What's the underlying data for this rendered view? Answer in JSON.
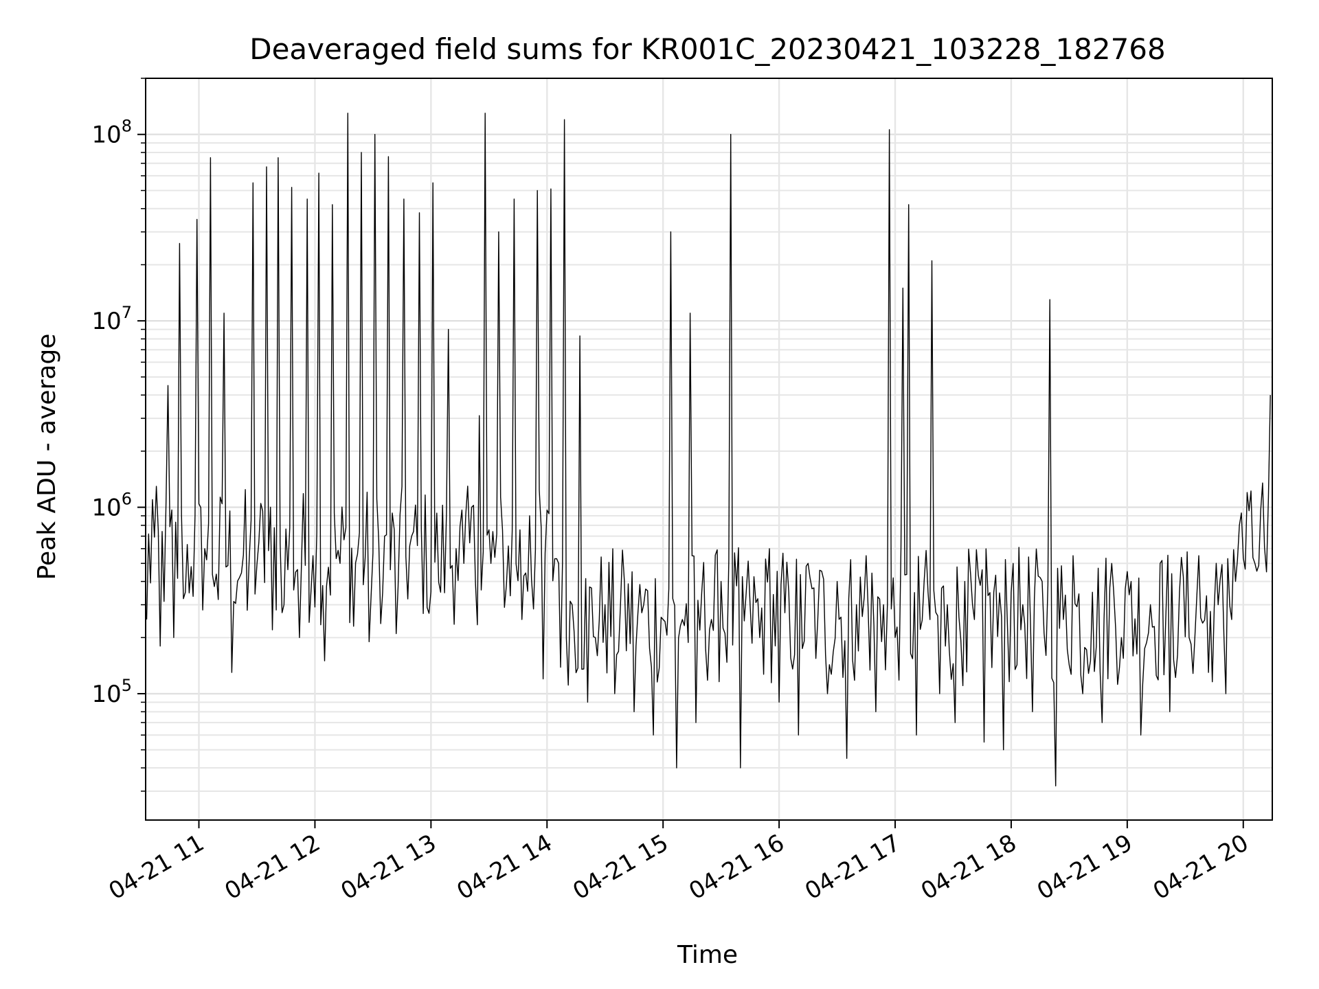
{
  "chart_data": {
    "type": "line",
    "title": "Deaveraged field sums for KR001C_20230421_103228_182768",
    "xlabel": "Time",
    "ylabel": "Peak ADU - average",
    "yscale": "log",
    "ylim": [
      21000,
      200000000
    ],
    "xlim": [
      "2023-04-21 10:32:28",
      "2023-04-21 20:15:00"
    ],
    "grid": true,
    "line_color": "#000000",
    "x_tick_labels": [
      "04-21 11",
      "04-21 12",
      "04-21 13",
      "04-21 14",
      "04-21 15",
      "04-21 16",
      "04-21 17",
      "04-21 18",
      "04-21 19",
      "04-21 20"
    ],
    "y_tick_labels": [
      {
        "base": "10",
        "exp": "5",
        "value": 100000
      },
      {
        "base": "10",
        "exp": "6",
        "value": 1000000
      },
      {
        "base": "10",
        "exp": "7",
        "value": 10000000
      },
      {
        "base": "10",
        "exp": "8",
        "value": 100000000
      }
    ],
    "series": [
      {
        "x": [
          "2023-04-21 10:33",
          "2023-04-21 10:36",
          "2023-04-21 10:40",
          "2023-04-21 10:44",
          "2023-04-21 10:47",
          "2023-04-21 10:50",
          "2023-04-21 10:53",
          "2023-04-21 10:56",
          "2023-04-21 10:59",
          "2023-04-21 11:03",
          "2023-04-21 11:06",
          "2023-04-21 11:10",
          "2023-04-21 11:13",
          "2023-04-21 11:17",
          "2023-04-21 11:21",
          "2023-04-21 11:25",
          "2023-04-21 11:28",
          "2023-04-21 11:31",
          "2023-04-21 11:35",
          "2023-04-21 11:38",
          "2023-04-21 11:41",
          "2023-04-21 11:44",
          "2023-04-21 11:48",
          "2023-04-21 11:52",
          "2023-04-21 11:56",
          "2023-04-21 11:59",
          "2023-04-21 12:02",
          "2023-04-21 12:05",
          "2023-04-21 12:09",
          "2023-04-21 12:13",
          "2023-04-21 12:17",
          "2023-04-21 12:20",
          "2023-04-21 12:24",
          "2023-04-21 12:28",
          "2023-04-21 12:31",
          "2023-04-21 12:35",
          "2023-04-21 12:38",
          "2023-04-21 12:42",
          "2023-04-21 12:46",
          "2023-04-21 12:50",
          "2023-04-21 12:54",
          "2023-04-21 12:58",
          "2023-04-21 13:01",
          "2023-04-21 13:05",
          "2023-04-21 13:09",
          "2023-04-21 13:13",
          "2023-04-21 13:17",
          "2023-04-21 13:21",
          "2023-04-21 13:25",
          "2023-04-21 13:28",
          "2023-04-21 13:31",
          "2023-04-21 13:35",
          "2023-04-21 13:39",
          "2023-04-21 13:43",
          "2023-04-21 13:47",
          "2023-04-21 13:51",
          "2023-04-21 13:55",
          "2023-04-21 13:58",
          "2023-04-21 14:02",
          "2023-04-21 14:06",
          "2023-04-21 14:09",
          "2023-04-21 14:13",
          "2023-04-21 14:17",
          "2023-04-21 14:21",
          "2023-04-21 14:25",
          "2023-04-21 14:30",
          "2023-04-21 14:35",
          "2023-04-21 14:40",
          "2023-04-21 14:45",
          "2023-04-21 14:50",
          "2023-04-21 14:55",
          "2023-04-21 15:00",
          "2023-04-21 15:04",
          "2023-04-21 15:07",
          "2023-04-21 15:10",
          "2023-04-21 15:14",
          "2023-04-21 15:17",
          "2023-04-21 15:20",
          "2023-04-21 15:25",
          "2023-04-21 15:30",
          "2023-04-21 15:35",
          "2023-04-21 15:40",
          "2023-04-21 15:45",
          "2023-04-21 15:50",
          "2023-04-21 15:55",
          "2023-04-21 16:00",
          "2023-04-21 16:05",
          "2023-04-21 16:10",
          "2023-04-21 16:15",
          "2023-04-21 16:20",
          "2023-04-21 16:25",
          "2023-04-21 16:30",
          "2023-04-21 16:35",
          "2023-04-21 16:40",
          "2023-04-21 16:45",
          "2023-04-21 16:50",
          "2023-04-21 16:54",
          "2023-04-21 16:57",
          "2023-04-21 17:00",
          "2023-04-21 17:04",
          "2023-04-21 17:07",
          "2023-04-21 17:11",
          "2023-04-21 17:15",
          "2023-04-21 17:19",
          "2023-04-21 17:23",
          "2023-04-21 17:27",
          "2023-04-21 17:31",
          "2023-04-21 17:36",
          "2023-04-21 17:41",
          "2023-04-21 17:46",
          "2023-04-21 17:51",
          "2023-04-21 17:56",
          "2023-04-21 18:01",
          "2023-04-21 18:06",
          "2023-04-21 18:11",
          "2023-04-21 18:16",
          "2023-04-21 18:20",
          "2023-04-21 18:23",
          "2023-04-21 18:27",
          "2023-04-21 18:32",
          "2023-04-21 18:37",
          "2023-04-21 18:42",
          "2023-04-21 18:47",
          "2023-04-21 18:52",
          "2023-04-21 18:57",
          "2023-04-21 19:02",
          "2023-04-21 19:07",
          "2023-04-21 19:12",
          "2023-04-21 19:17",
          "2023-04-21 19:22",
          "2023-04-21 19:27",
          "2023-04-21 19:32",
          "2023-04-21 19:37",
          "2023-04-21 19:42",
          "2023-04-21 19:47",
          "2023-04-21 19:51",
          "2023-04-21 19:54",
          "2023-04-21 19:58",
          "2023-04-21 20:02",
          "2023-04-21 20:06",
          "2023-04-21 20:10",
          "2023-04-21 20:12",
          "2023-04-21 20:14"
        ],
        "y": [
          250000,
          1100000,
          180000,
          4500000,
          200000,
          26000000,
          350000,
          480000,
          35000000,
          600000,
          75000000,
          320000,
          11000000,
          130000,
          420000,
          280000,
          55000000,
          650000,
          67000000,
          220000,
          75000000,
          300000,
          52000000,
          200000,
          45000000,
          550000,
          62000000,
          150000,
          42000000,
          500000,
          130000000,
          230000,
          80000000,
          190000,
          100000000,
          350000,
          76000000,
          210000,
          45000000,
          700000,
          38000000,
          290000,
          55000000,
          350000,
          9000000,
          600000,
          500000,
          1000000,
          3100000,
          130000000,
          500000,
          30000000,
          380000,
          45000000,
          250000,
          900000,
          50000000,
          120000,
          51000000,
          500000,
          120000000,
          300000,
          8300000,
          90000,
          200000,
          300000,
          100000,
          400000,
          80000,
          300000,
          60000,
          250000,
          30000000,
          40000,
          250000,
          11000000,
          70000,
          350000,
          250000,
          400000,
          100000000,
          40000,
          300000,
          200000,
          600000,
          90000,
          350000,
          60000,
          500000,
          250000,
          100000,
          400000,
          45000,
          300000,
          550000,
          80000,
          300000,
          106000000,
          200000,
          15000000,
          42000000,
          60000,
          400000,
          21000000,
          100000,
          300000,
          70000,
          400000,
          250000,
          55000,
          350000,
          50000,
          500000,
          300000,
          80000,
          400000,
          13000000,
          32000,
          250000,
          550000,
          100000,
          350000,
          70000,
          500000,
          200000,
          400000,
          60000,
          300000,
          500000,
          80000,
          350000,
          200000,
          550000,
          130000,
          300000,
          100000,
          250000,
          800000,
          1200000,
          500000,
          1350000,
          450000,
          4000000
        ]
      }
    ]
  }
}
